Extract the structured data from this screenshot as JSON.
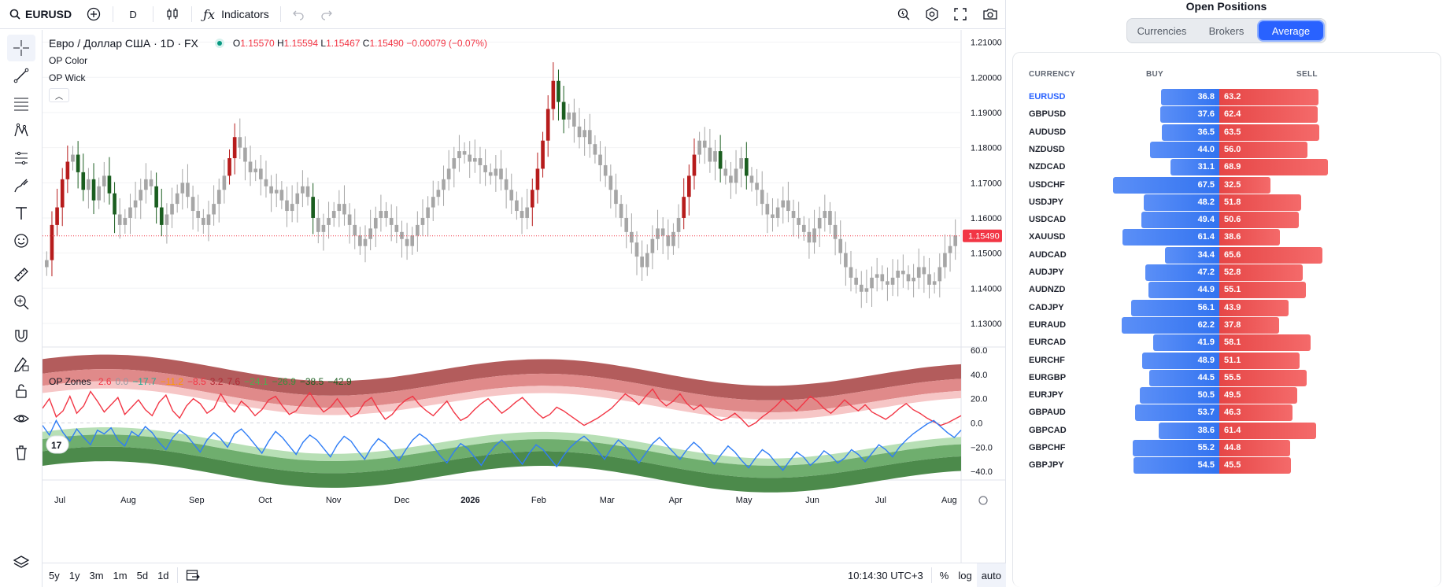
{
  "toolbar": {
    "symbol": "EURUSD",
    "interval": "D",
    "indicators_label": "Indicators"
  },
  "legend": {
    "symbol_name": "Евро / Доллар США · 1D · FX",
    "o_label": "O",
    "o_value": "1.15570",
    "h_label": "H",
    "h_value": "1.15594",
    "l_label": "L",
    "l_value": "1.15467",
    "c_label": "C",
    "c_value": "1.15490",
    "change": "−0.00079 (−0.07%)",
    "indicators": [
      "OP Color",
      "OP Wick"
    ]
  },
  "zones_legend": {
    "name": "OP Zones",
    "values": [
      {
        "text": "2.6",
        "color": "#f23645"
      },
      {
        "text": "0.0",
        "color": "#9598a1"
      },
      {
        "text": "−17.7",
        "color": "#22ab94"
      },
      {
        "text": "−11.2",
        "color": "#ff9800"
      },
      {
        "text": "−8.5",
        "color": "#f23645"
      },
      {
        "text": "3.2",
        "color": "#b22833"
      },
      {
        "text": "7.6",
        "color": "#b22833"
      },
      {
        "text": "−24.1",
        "color": "#4caf50"
      },
      {
        "text": "−26.9",
        "color": "#388e3c"
      },
      {
        "text": "−38.5",
        "color": "#1b5e20"
      },
      {
        "text": "−42.9",
        "color": "#1b5e20"
      }
    ]
  },
  "chart_data": {
    "type": "candlestick",
    "price_axis": [
      "1.21000",
      "1.20000",
      "1.19000",
      "1.18000",
      "1.17000",
      "1.16000",
      "1.15000",
      "1.14000",
      "1.13000"
    ],
    "last_price": "1.15490",
    "time_axis": [
      "Jul",
      "Aug",
      "Sep",
      "Oct",
      "Nov",
      "Dec",
      "2026",
      "Feb",
      "Mar",
      "Apr",
      "May",
      "Jun",
      "Jul",
      "Aug"
    ],
    "closes": [
      1.148,
      1.158,
      1.163,
      1.171,
      1.176,
      1.178,
      1.173,
      1.168,
      1.171,
      1.165,
      1.169,
      1.172,
      1.167,
      1.161,
      1.158,
      1.16,
      1.163,
      1.165,
      1.168,
      1.171,
      1.169,
      1.163,
      1.158,
      1.161,
      1.164,
      1.167,
      1.17,
      1.166,
      1.162,
      1.16,
      1.158,
      1.161,
      1.164,
      1.168,
      1.172,
      1.177,
      1.183,
      1.18,
      1.176,
      1.173,
      1.174,
      1.171,
      1.169,
      1.167,
      1.168,
      1.165,
      1.162,
      1.164,
      1.167,
      1.169,
      1.166,
      1.16,
      1.156,
      1.158,
      1.16,
      1.162,
      1.164,
      1.161,
      1.158,
      1.155,
      1.152,
      1.154,
      1.157,
      1.16,
      1.162,
      1.16,
      1.158,
      1.156,
      1.154,
      1.152,
      1.155,
      1.158,
      1.16,
      1.163,
      1.166,
      1.168,
      1.171,
      1.174,
      1.177,
      1.179,
      1.178,
      1.176,
      1.177,
      1.175,
      1.173,
      1.172,
      1.174,
      1.171,
      1.168,
      1.165,
      1.162,
      1.16,
      1.163,
      1.168,
      1.174,
      1.182,
      1.191,
      1.199,
      1.193,
      1.188,
      1.19,
      1.186,
      1.183,
      1.185,
      1.181,
      1.178,
      1.175,
      1.172,
      1.168,
      1.164,
      1.16,
      1.156,
      1.153,
      1.149,
      1.146,
      1.15,
      1.154,
      1.157,
      1.155,
      1.152,
      1.156,
      1.16,
      1.166,
      1.172,
      1.178,
      1.182,
      1.18,
      1.176,
      1.179,
      1.174,
      1.172,
      1.17,
      1.174,
      1.177,
      1.172,
      1.17,
      1.168,
      1.164,
      1.161,
      1.16,
      1.163,
      1.165,
      1.162,
      1.16,
      1.158,
      1.156,
      1.153,
      1.157,
      1.16,
      1.162,
      1.158,
      1.154,
      1.15,
      1.146,
      1.143,
      1.141,
      1.139,
      1.14,
      1.143,
      1.144,
      1.142,
      1.141,
      1.143,
      1.145,
      1.144,
      1.142,
      1.143,
      1.146,
      1.144,
      1.141,
      1.142,
      1.146,
      1.15,
      1.152,
      1.155
    ],
    "oscillator_axis": [
      "60.0",
      "40.0",
      "20.0",
      "0.0",
      "−20.0",
      "−40.0"
    ],
    "red_line": [
      12,
      20,
      5,
      10,
      22,
      8,
      14,
      26,
      18,
      9,
      15,
      21,
      7,
      13,
      19,
      11,
      6,
      17,
      23,
      10,
      4,
      14,
      20,
      16,
      8,
      12,
      24,
      15,
      9,
      18,
      13,
      6,
      11,
      19,
      22,
      14,
      7,
      10,
      18,
      25,
      16,
      9,
      13,
      20,
      12,
      5,
      8,
      17,
      21,
      11,
      3,
      7,
      14,
      19,
      22,
      15,
      10,
      6,
      12,
      18,
      9,
      2,
      5,
      11,
      16,
      20,
      14,
      8,
      12,
      17,
      21,
      15,
      9,
      4,
      7,
      13,
      10,
      6,
      2,
      -2,
      1,
      4,
      8,
      12,
      18,
      24,
      20,
      15,
      22,
      28,
      19,
      14,
      18,
      24,
      16,
      11,
      15,
      9,
      5,
      2,
      4,
      8,
      3,
      -3,
      0,
      5,
      9,
      14,
      20,
      15,
      10,
      16,
      22,
      18,
      12,
      8,
      13,
      19,
      14,
      10,
      15,
      9,
      6,
      3,
      7,
      12,
      16,
      11,
      8,
      4,
      1,
      -2,
      0,
      3,
      6
    ],
    "blue_line": [
      -2,
      -10,
      2,
      -8,
      -15,
      -5,
      -12,
      -18,
      -6,
      -9,
      -4,
      -14,
      -19,
      -7,
      -11,
      -3,
      -8,
      -16,
      -22,
      -12,
      -6,
      -10,
      -17,
      -24,
      -14,
      -8,
      -13,
      -20,
      -9,
      -5,
      -11,
      -18,
      -25,
      -15,
      -7,
      -12,
      -19,
      -26,
      -16,
      -10,
      -14,
      -21,
      -28,
      -18,
      -11,
      -15,
      -23,
      -30,
      -20,
      -13,
      -17,
      -24,
      -31,
      -22,
      -14,
      -9,
      -13,
      -19,
      -27,
      -33,
      -24,
      -17,
      -21,
      -28,
      -35,
      -26,
      -19,
      -14,
      -20,
      -27,
      -34,
      -25,
      -18,
      -22,
      -29,
      -36,
      -27,
      -20,
      -15,
      -11,
      -16,
      -23,
      -30,
      -21,
      -14,
      -19,
      -26,
      -33,
      -25,
      -17,
      -12,
      -18,
      -24,
      -30,
      -22,
      -16,
      -21,
      -28,
      -34,
      -26,
      -19,
      -24,
      -31,
      -37,
      -29,
      -22,
      -26,
      -33,
      -39,
      -31,
      -24,
      -28,
      -35,
      -30,
      -23,
      -27,
      -33,
      -29,
      -22,
      -26,
      -32,
      -25,
      -18,
      -22,
      -28,
      -20,
      -14,
      -9,
      -5,
      -1,
      2,
      -3,
      -8,
      -12,
      -6
    ]
  },
  "bottom_toolbar": {
    "ranges": [
      "5y",
      "1y",
      "3m",
      "1m",
      "5d",
      "1d"
    ],
    "clock": "10:14:30 UTC+3",
    "percent": "%",
    "log": "log",
    "auto": "auto"
  },
  "positions": {
    "title": "Open Positions",
    "tabs": [
      "Currencies",
      "Brokers",
      "Average"
    ],
    "active_tab": "Average",
    "headers": {
      "currency": "CURRENCY",
      "buy": "BUY",
      "sell": "SELL"
    },
    "colors": {
      "buy": "#3273f0",
      "sell": "#f05252"
    },
    "rows": [
      {
        "name": "EURUSD",
        "buy": "36.8",
        "sell": "63.2"
      },
      {
        "name": "GBPUSD",
        "buy": "37.6",
        "sell": "62.4"
      },
      {
        "name": "AUDUSD",
        "buy": "36.5",
        "sell": "63.5"
      },
      {
        "name": "NZDUSD",
        "buy": "44.0",
        "sell": "56.0"
      },
      {
        "name": "NZDCAD",
        "buy": "31.1",
        "sell": "68.9"
      },
      {
        "name": "USDCHF",
        "buy": "67.5",
        "sell": "32.5"
      },
      {
        "name": "USDJPY",
        "buy": "48.2",
        "sell": "51.8"
      },
      {
        "name": "USDCAD",
        "buy": "49.4",
        "sell": "50.6"
      },
      {
        "name": "XAUUSD",
        "buy": "61.4",
        "sell": "38.6"
      },
      {
        "name": "AUDCAD",
        "buy": "34.4",
        "sell": "65.6"
      },
      {
        "name": "AUDJPY",
        "buy": "47.2",
        "sell": "52.8"
      },
      {
        "name": "AUDNZD",
        "buy": "44.9",
        "sell": "55.1"
      },
      {
        "name": "CADJPY",
        "buy": "56.1",
        "sell": "43.9"
      },
      {
        "name": "EURAUD",
        "buy": "62.2",
        "sell": "37.8"
      },
      {
        "name": "EURCAD",
        "buy": "41.9",
        "sell": "58.1"
      },
      {
        "name": "EURCHF",
        "buy": "48.9",
        "sell": "51.1"
      },
      {
        "name": "EURGBP",
        "buy": "44.5",
        "sell": "55.5"
      },
      {
        "name": "EURJPY",
        "buy": "50.5",
        "sell": "49.5"
      },
      {
        "name": "GBPAUD",
        "buy": "53.7",
        "sell": "46.3"
      },
      {
        "name": "GBPCAD",
        "buy": "38.6",
        "sell": "61.4"
      },
      {
        "name": "GBPCHF",
        "buy": "55.2",
        "sell": "44.8"
      },
      {
        "name": "GBPJPY",
        "buy": "54.5",
        "sell": "45.5"
      }
    ]
  },
  "icons": {
    "left_toolbar": [
      "crosshair-icon",
      "trend-line-icon",
      "fib-icon",
      "pattern-icon",
      "prediction-icon",
      "brush-icon",
      "text-icon",
      "emoji-icon",
      "ruler-icon",
      "zoom-in-icon",
      "magnet-icon",
      "lock-drawings-icon",
      "unlock-icon",
      "eye-icon",
      "trash-icon"
    ]
  }
}
